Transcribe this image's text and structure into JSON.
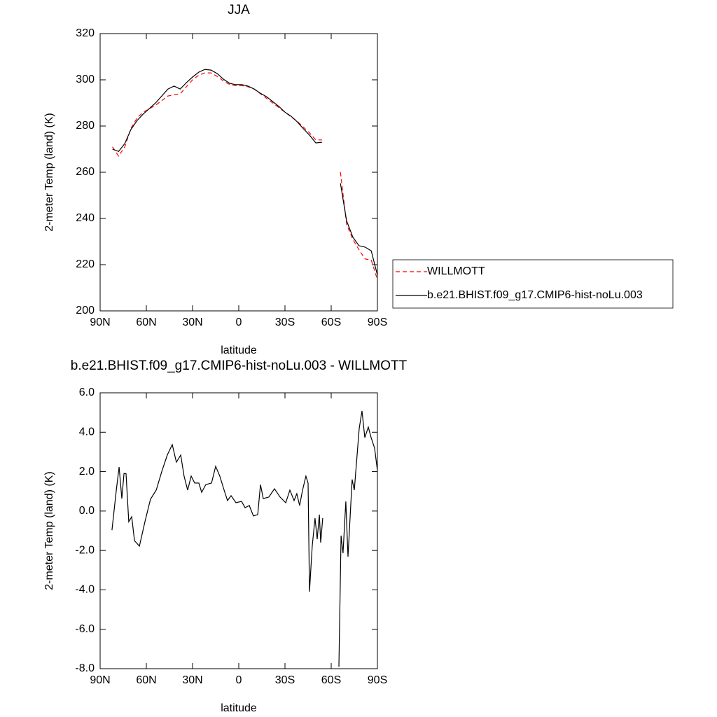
{
  "chart_data": [
    {
      "type": "line",
      "title": "JJA",
      "xlabel": "latitude",
      "ylabel": "2-meter Temp (land) (K)",
      "x": [
        82,
        78,
        74,
        70,
        66,
        62,
        58,
        54,
        50,
        46,
        42,
        38,
        34,
        30,
        26,
        22,
        18,
        14,
        10,
        6,
        2,
        -2,
        -6,
        -10,
        -14,
        -18,
        -22,
        -26,
        -30,
        -34,
        -38,
        -42,
        -46,
        -50,
        -54,
        -58,
        -62,
        -66,
        -70,
        -74,
        -78,
        -82,
        -86,
        -90
      ],
      "series": [
        {
          "name": "WILLMOTT",
          "color": "#ff0000",
          "style": "dashed",
          "values": [
            271,
            267,
            271,
            279,
            283.5,
            286,
            287.5,
            289,
            291,
            293,
            293.5,
            294,
            297,
            300,
            302,
            303,
            303,
            301.5,
            299.5,
            298,
            297.5,
            297.5,
            297,
            296,
            294,
            292,
            290,
            288,
            286,
            284,
            282,
            279.5,
            277,
            274,
            274,
            null,
            null,
            260,
            237.5,
            231,
            226.5,
            222.5,
            222,
            213.5
          ]
        },
        {
          "name": "b.e21.BHIST.f09_g17.CMIP6-hist-noLu.003",
          "color": "#000000",
          "style": "solid",
          "values": [
            270,
            269,
            272.4,
            278.5,
            282.4,
            285.2,
            287.6,
            290,
            293,
            296,
            297.3,
            296,
            298.8,
            301.2,
            303.3,
            304.5,
            304.2,
            302.7,
            300.3,
            298.5,
            297.9,
            297.9,
            297.3,
            296,
            294.2,
            292.7,
            290.6,
            288.5,
            286,
            284.2,
            281.8,
            278.8,
            276,
            272.7,
            273,
            null,
            null,
            255.2,
            239,
            232,
            228.2,
            227.6,
            226,
            215.5
          ]
        }
      ],
      "xlim": [
        90,
        -90
      ],
      "xticks": [
        {
          "value": 90,
          "label": "90N"
        },
        {
          "value": 60,
          "label": "60N"
        },
        {
          "value": 30,
          "label": "30N"
        },
        0,
        {
          "value": -30,
          "label": "30S"
        },
        {
          "value": -60,
          "label": "60S"
        },
        {
          "value": -90,
          "label": "90S"
        }
      ],
      "ylim": [
        200,
        320
      ],
      "yticks": [
        200,
        220,
        240,
        260,
        280,
        300,
        320
      ],
      "legend": "right"
    },
    {
      "type": "line",
      "title": "b.e21.BHIST.f09_g17.CMIP6-hist-noLu.003 - WILLMOTT",
      "xlabel": "latitude",
      "ylabel": "2-meter Temp (land) (K)",
      "x": [
        82.3,
        79.5,
        77.7,
        75.9,
        74.5,
        73.2,
        71.4,
        69.5,
        67.7,
        64.5,
        60.9,
        57.3,
        53.6,
        50,
        46.4,
        43.2,
        40.5,
        37.7,
        35.5,
        33.2,
        30.9,
        28.6,
        25.9,
        24.1,
        21.4,
        17.7,
        15,
        12.3,
        9.5,
        7.3,
        5,
        1.8,
        -1.8,
        -4.1,
        -6.8,
        -9.5,
        -12.3,
        -14.1,
        -15.9,
        -19.5,
        -23.2,
        -26.8,
        -30.5,
        -33.2,
        -35.9,
        -37.7,
        -39.5,
        -41.4,
        -43.6,
        -45,
        -45.9,
        -47.7,
        -49.5,
        -50.9,
        -52.3,
        -53.2,
        -54.5,
        -60,
        -65,
        -66.4,
        -67.7,
        -69.5,
        -70.9,
        -73.6,
        -75,
        -76.8,
        -78.2,
        -80,
        -81.8,
        -84.1,
        -85.9,
        -88.2,
        -90
      ],
      "values": [
        -0.97,
        1.06,
        2.23,
        0.63,
        1.91,
        1.9,
        -0.54,
        -0.29,
        -1.5,
        -1.78,
        -0.54,
        0.6,
        1.06,
        2.0,
        2.84,
        3.37,
        2.48,
        2.84,
        1.77,
        1.06,
        1.77,
        1.42,
        1.42,
        0.95,
        1.34,
        1.42,
        2.27,
        1.77,
        1.06,
        0.53,
        0.78,
        0.42,
        0.49,
        0.17,
        0.28,
        -0.25,
        -0.18,
        1.34,
        0.63,
        0.71,
        1.13,
        0.71,
        0.42,
        1.06,
        0.53,
        0.88,
        0.28,
        1.06,
        1.77,
        1.42,
        -4.09,
        -1.78,
        -0.36,
        -1.43,
        -0.18,
        -1.6,
        -0.36,
        null,
        -7.9,
        -1.25,
        -2.14,
        0.49,
        -2.32,
        1.6,
        1.06,
        2.84,
        4.19,
        5.08,
        3.73,
        4.26,
        3.73,
        3.19,
        2.06
      ],
      "color": "#000000",
      "xlim": [
        90,
        -90
      ],
      "xticks": [
        {
          "value": 90,
          "label": "90N"
        },
        {
          "value": 60,
          "label": "60N"
        },
        {
          "value": 30,
          "label": "30N"
        },
        0,
        {
          "value": -30,
          "label": "30S"
        },
        {
          "value": -60,
          "label": "60S"
        },
        {
          "value": -90,
          "label": "90S"
        }
      ],
      "ylim": [
        -8,
        6
      ],
      "yticks": [
        {
          "value": -8,
          "label": "-8.0"
        },
        {
          "value": -6,
          "label": "-6.0"
        },
        {
          "value": -4,
          "label": "-4.0"
        },
        {
          "value": -2,
          "label": "-2.0"
        },
        {
          "value": 0,
          "label": "0.0"
        },
        {
          "value": 2,
          "label": "2.0"
        },
        {
          "value": 4,
          "label": "4.0"
        },
        {
          "value": 6,
          "label": "6.0"
        }
      ]
    }
  ]
}
